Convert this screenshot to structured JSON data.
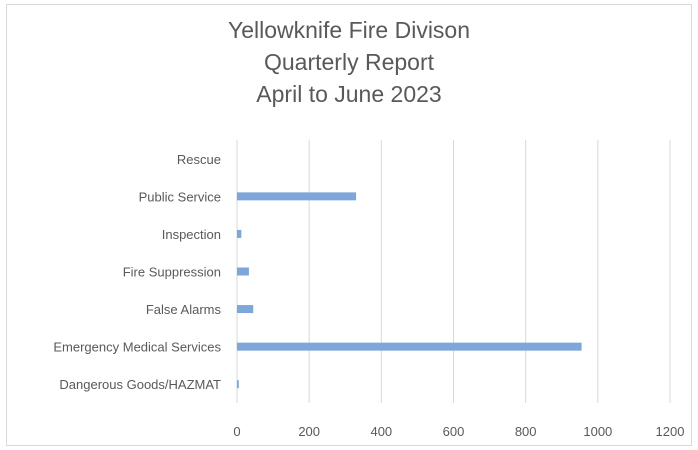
{
  "chart_data": {
    "type": "bar",
    "orientation": "horizontal",
    "title_lines": [
      "Yellowknife Fire Divison",
      "Quarterly Report",
      "April to June 2023"
    ],
    "categories": [
      "Rescue",
      "Public Service",
      "Inspection",
      "Fire Suppression",
      "False Alarms",
      "Emergency Medical Services",
      "Dangerous Goods/HAZMAT"
    ],
    "values": [
      0,
      330,
      12,
      33,
      45,
      955,
      5
    ],
    "xlim": [
      0,
      1200
    ],
    "xticks": [
      "0",
      "200",
      "400",
      "600",
      "800",
      "1000",
      "1200"
    ],
    "grid": "vertical",
    "legend": "none",
    "bar_color": "#7ea6d8",
    "grid_color": "#d9d9d9",
    "text_color": "#595959"
  }
}
